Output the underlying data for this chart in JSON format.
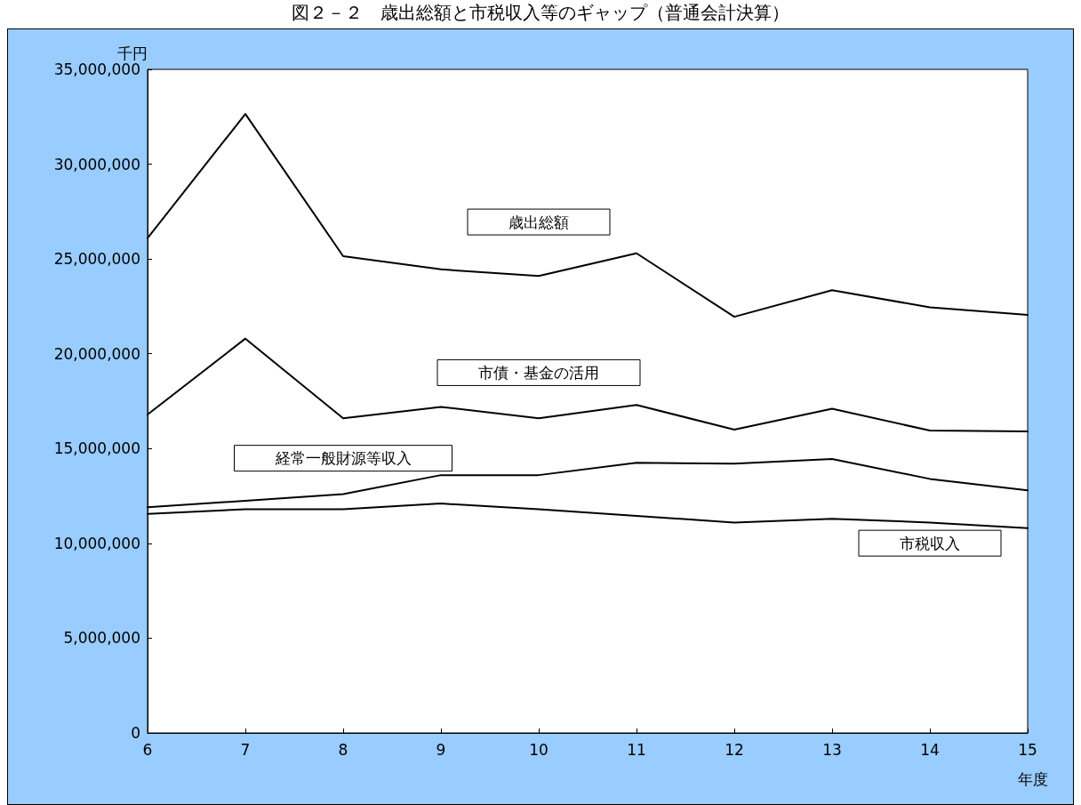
{
  "chart_data": {
    "type": "line",
    "title": "図２－２　歳出総額と市税収入等のギャップ（普通会計決算）",
    "xlabel": "年度",
    "ylabel": "千円",
    "categories": [
      "6",
      "7",
      "8",
      "9",
      "10",
      "11",
      "12",
      "13",
      "14",
      "15"
    ],
    "series": [
      {
        "name": "歳出総額",
        "color": "#000000",
        "values": [
          26100000,
          32650000,
          25150000,
          24450000,
          24100000,
          25300000,
          21950000,
          23350000,
          22450000,
          22050000
        ]
      },
      {
        "name": "市債・基金の活用",
        "color": "#000000",
        "values": [
          16800000,
          20800000,
          16600000,
          17200000,
          16600000,
          17300000,
          16000000,
          17100000,
          15950000,
          15900000
        ]
      },
      {
        "name": "経常一般財源等収入",
        "color": "#000000",
        "values": [
          11900000,
          12250000,
          12600000,
          13600000,
          13600000,
          14250000,
          14200000,
          14450000,
          13400000,
          12800000
        ]
      },
      {
        "name": "市税収入",
        "color": "#000000",
        "values": [
          11550000,
          11800000,
          11800000,
          12100000,
          11800000,
          11450000,
          11100000,
          11300000,
          11100000,
          10800000
        ]
      }
    ],
    "ylim": [
      0,
      35000000
    ],
    "yticks": [
      0,
      {
        "value": 5000000,
        "label": "5,000,000"
      },
      {
        "value": 10000000,
        "label": "10,000,000"
      },
      {
        "value": 15000000,
        "label": "15,000,000"
      },
      {
        "value": 20000000,
        "label": "20,000,000"
      },
      {
        "value": 25000000,
        "label": "25,000,000"
      },
      {
        "value": 30000000,
        "label": "30,000,000"
      },
      {
        "value": 35000000,
        "label": "35,000,000"
      }
    ],
    "marker": "none",
    "line_style": "solid",
    "legend": false,
    "grid": false
  }
}
